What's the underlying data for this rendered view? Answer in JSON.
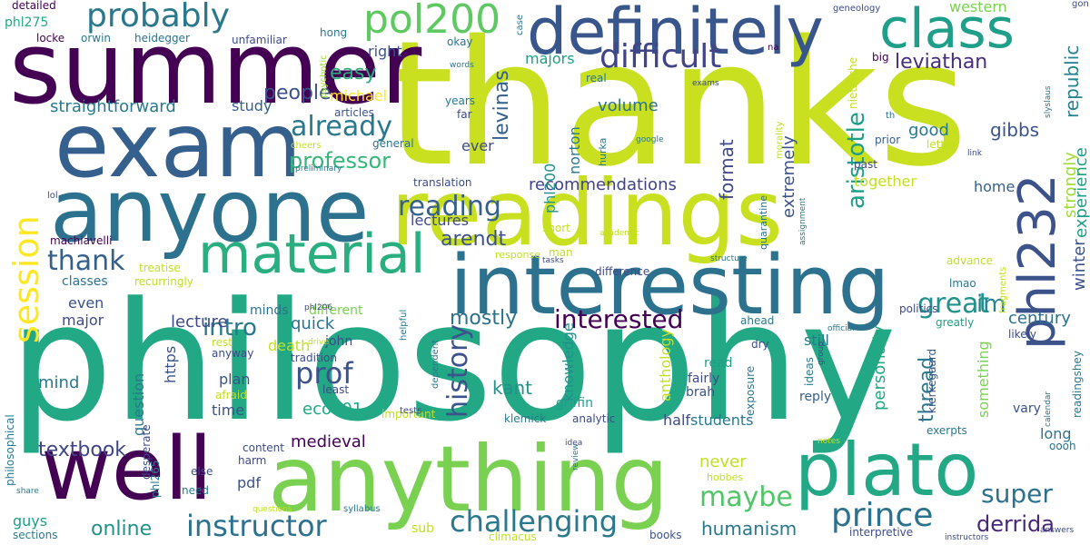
{
  "words": [
    {
      "text": "thanks",
      "color": "#c8e020"
    },
    {
      "text": "philosophy",
      "color": "#22a884"
    },
    {
      "text": "summer",
      "color": "#440154"
    },
    {
      "text": "exam",
      "color": "#355f8d"
    },
    {
      "text": "anyone",
      "color": "#2c728e"
    },
    {
      "text": "readings",
      "color": "#c8e020"
    },
    {
      "text": "definitely",
      "color": "#39568c"
    },
    {
      "text": "anything",
      "color": "#7ad151"
    },
    {
      "text": "well",
      "color": "#440154"
    },
    {
      "text": "interesting",
      "color": "#2c728e"
    },
    {
      "text": "plato",
      "color": "#22a884"
    },
    {
      "text": "class",
      "color": "#1f9e89"
    },
    {
      "text": "material",
      "color": "#29af7f"
    },
    {
      "text": "phl232",
      "color": "#3b528b"
    },
    {
      "text": "session",
      "color": "#fde725"
    },
    {
      "text": "pol200",
      "color": "#5ec962"
    },
    {
      "text": "probably",
      "color": "#2a788e"
    },
    {
      "text": "difficult",
      "color": "#414487"
    },
    {
      "text": "prince",
      "color": "#2c728e"
    },
    {
      "text": "challenging",
      "color": "#2a788e"
    },
    {
      "text": "instructor",
      "color": "#2c728e"
    },
    {
      "text": "interested",
      "color": "#440154"
    },
    {
      "text": "history",
      "color": "#3b528b"
    },
    {
      "text": "leviathan",
      "color": "#472d7b"
    },
    {
      "text": "super",
      "color": "#2c728e"
    },
    {
      "text": "great",
      "color": "#21918c"
    },
    {
      "text": "derrida",
      "color": "#482878"
    },
    {
      "text": "aristotle",
      "color": "#1f9e89"
    },
    {
      "text": "already",
      "color": "#2a788e"
    },
    {
      "text": "thank",
      "color": "#355f8d"
    },
    {
      "text": "prof",
      "color": "#3b528b"
    },
    {
      "text": "maybe",
      "color": "#52c569"
    },
    {
      "text": "reading",
      "color": "#355f8d"
    },
    {
      "text": "professor",
      "color": "#35b779"
    },
    {
      "text": "im",
      "color": "#26828e"
    },
    {
      "text": "intro",
      "color": "#2a788e"
    },
    {
      "text": "people",
      "color": "#3b528b"
    },
    {
      "text": "easy",
      "color": "#29af7f"
    },
    {
      "text": "republic",
      "color": "#26828e"
    },
    {
      "text": "format",
      "color": "#3e4a89"
    },
    {
      "text": "extremely",
      "color": "#3b528b"
    },
    {
      "text": "levinas",
      "color": "#355f8d"
    },
    {
      "text": "arendt",
      "color": "#3b528b"
    },
    {
      "text": "mostly",
      "color": "#2c728e"
    },
    {
      "text": "textbook",
      "color": "#414487"
    },
    {
      "text": "humanism",
      "color": "#2a788e"
    },
    {
      "text": "online",
      "color": "#21918c"
    },
    {
      "text": "gibbs",
      "color": "#3b528b"
    },
    {
      "text": "strongly",
      "color": "#a0da39"
    },
    {
      "text": "experience",
      "color": "#1f9e89"
    },
    {
      "text": "winter",
      "color": "#3b528b"
    },
    {
      "text": "century",
      "color": "#2c728e"
    },
    {
      "text": "thread",
      "color": "#2a788e"
    },
    {
      "text": "personally",
      "color": "#22a884"
    },
    {
      "text": "something",
      "color": "#7ad151"
    },
    {
      "text": "recommendations",
      "color": "#414487"
    },
    {
      "text": "straightforward",
      "color": "#2a788e"
    },
    {
      "text": "western",
      "color": "#7ad151"
    },
    {
      "text": "lecture",
      "color": "#3e4a89"
    },
    {
      "text": "quick",
      "color": "#2c728e"
    },
    {
      "text": "lectures",
      "color": "#3e4a89"
    },
    {
      "text": "kant",
      "color": "#21918c"
    },
    {
      "text": "eco101",
      "color": "#22a884"
    },
    {
      "text": "medieval",
      "color": "#440154"
    },
    {
      "text": "never",
      "color": "#c2df23"
    },
    {
      "text": "students",
      "color": "#2a788e"
    },
    {
      "text": "good",
      "color": "#2a788e"
    },
    {
      "text": "volume",
      "color": "#2c728e"
    },
    {
      "text": "home",
      "color": "#355f8d"
    },
    {
      "text": "mind",
      "color": "#2a788e"
    },
    {
      "text": "question",
      "color": "#2a788e"
    },
    {
      "text": "death",
      "color": "#c2df23"
    },
    {
      "text": "knowledge",
      "color": "#21918c"
    },
    {
      "text": "anthology",
      "color": "#c2df23"
    },
    {
      "text": "still",
      "color": "#2a788e"
    },
    {
      "text": "majors",
      "color": "#1f9e89"
    },
    {
      "text": "study",
      "color": "#355f8d"
    },
    {
      "text": "right",
      "color": "#3b528b"
    },
    {
      "text": "together",
      "color": "#c2df23"
    },
    {
      "text": "long",
      "color": "#2c728e"
    },
    {
      "text": "https",
      "color": "#3b528b"
    },
    {
      "text": "ever",
      "color": "#3e4a89"
    },
    {
      "text": "norton",
      "color": "#2a788e"
    },
    {
      "text": "phl200",
      "color": "#21918c"
    },
    {
      "text": "michael",
      "color": "#fde725"
    },
    {
      "text": "machiavelli",
      "color": "#440154"
    },
    {
      "text": "treatise",
      "color": "#c2df23"
    },
    {
      "text": "classes",
      "color": "#2c728e"
    },
    {
      "text": "recurringly",
      "color": "#c2df23"
    },
    {
      "text": "minds",
      "color": "#2c728e"
    },
    {
      "text": "different",
      "color": "#7ad151"
    },
    {
      "text": "even",
      "color": "#3b528b"
    },
    {
      "text": "major",
      "color": "#3e4a89"
    },
    {
      "text": "time",
      "color": "#3b528b"
    },
    {
      "text": "plan",
      "color": "#3b528b"
    },
    {
      "text": "half",
      "color": "#3e4a89"
    },
    {
      "text": "griffin",
      "color": "#1f9e89"
    },
    {
      "text": "pdf",
      "color": "#3b528b"
    },
    {
      "text": "sub",
      "color": "#c2df23"
    },
    {
      "text": "guys",
      "color": "#1f9e89"
    },
    {
      "text": "john",
      "color": "#3e4a89"
    },
    {
      "text": "sections",
      "color": "#2a788e"
    },
    {
      "text": "politics",
      "color": "#3e4a89"
    },
    {
      "text": "ahead",
      "color": "#2a788e"
    },
    {
      "text": "greatly",
      "color": "#1f9e89"
    },
    {
      "text": "likely",
      "color": "#3e4a89"
    },
    {
      "text": "vary",
      "color": "#3b528b"
    },
    {
      "text": "oooh",
      "color": "#2c728e"
    },
    {
      "text": "reply",
      "color": "#355f8d"
    },
    {
      "text": "brah",
      "color": "#3b528b"
    },
    {
      "text": "fairly",
      "color": "#3e4a89"
    },
    {
      "text": "read",
      "color": "#1f9e89"
    },
    {
      "text": "exposure",
      "color": "#2a788e"
    },
    {
      "text": "kierkegaard",
      "color": "#3b528b"
    },
    {
      "text": "exerpts",
      "color": "#2a788e"
    },
    {
      "text": "dry",
      "color": "#3e4a89"
    },
    {
      "text": "advance",
      "color": "#c2df23"
    },
    {
      "text": "lmao",
      "color": "#2a788e"
    },
    {
      "text": "past",
      "color": "#3e4a89"
    },
    {
      "text": "prior",
      "color": "#355f8d"
    },
    {
      "text": "letter",
      "color": "#c2df23"
    },
    {
      "text": "big",
      "color": "#440154"
    },
    {
      "text": "geneology",
      "color": "#3e4a89"
    },
    {
      "text": "nietzsche",
      "color": "#c2df23"
    },
    {
      "text": "locke",
      "color": "#440154"
    },
    {
      "text": "phl275",
      "color": "#22a884"
    },
    {
      "text": "detailed",
      "color": "#440154"
    },
    {
      "text": "orwin",
      "color": "#2a788e"
    },
    {
      "text": "heidegger",
      "color": "#2c728e"
    },
    {
      "text": "unfamiliar",
      "color": "#3e4a89"
    },
    {
      "text": "hong",
      "color": "#2a788e"
    },
    {
      "text": "psychotic",
      "color": "#a0da39"
    },
    {
      "text": "okay",
      "color": "#2a788e"
    },
    {
      "text": "case",
      "color": "#2c728e"
    },
    {
      "text": "gon",
      "color": "#3e4a89"
    },
    {
      "text": "na",
      "color": "#440154"
    },
    {
      "text": "articles",
      "color": "#3b528b"
    },
    {
      "text": "years",
      "color": "#2a788e"
    },
    {
      "text": "far",
      "color": "#3e4a89"
    },
    {
      "text": "general",
      "color": "#2c728e"
    },
    {
      "text": "cheers",
      "color": "#c2df23"
    },
    {
      "text": "preliminary",
      "color": "#2a788e"
    },
    {
      "text": "lol",
      "color": "#3e4a89"
    },
    {
      "text": "translation",
      "color": "#3e4a89"
    },
    {
      "text": "real",
      "color": "#2a788e"
    },
    {
      "text": "words",
      "color": "#2a788e"
    },
    {
      "text": "exams",
      "color": "#3e4a89"
    },
    {
      "text": "google",
      "color": "#2a788e"
    },
    {
      "text": "link",
      "color": "#3e4a89"
    },
    {
      "text": "th",
      "color": "#2c728e"
    },
    {
      "text": "morality",
      "color": "#c2df23"
    },
    {
      "text": "hurka",
      "color": "#2a788e"
    },
    {
      "text": "quarantine",
      "color": "#2c728e"
    },
    {
      "text": "assignment",
      "color": "#2a788e"
    },
    {
      "text": "academic",
      "color": "#c2df23"
    },
    {
      "text": "short",
      "color": "#c2df23"
    },
    {
      "text": "man",
      "color": "#c2df23"
    },
    {
      "text": "response",
      "color": "#c2df23"
    },
    {
      "text": "tasks",
      "color": "#3e4a89"
    },
    {
      "text": "difference",
      "color": "#3e4a89"
    },
    {
      "text": "structure",
      "color": "#2a788e"
    },
    {
      "text": "official",
      "color": "#2a788e"
    },
    {
      "text": "group",
      "color": "#3e4a89"
    },
    {
      "text": "ideas",
      "color": "#2a788e"
    },
    {
      "text": "fragments",
      "color": "#c2df23"
    },
    {
      "text": "readingshey",
      "color": "#2a788e"
    },
    {
      "text": "calendar",
      "color": "#2c728e"
    },
    {
      "text": "notes",
      "color": "#c2df23"
    },
    {
      "text": "answers",
      "color": "#3e4a89"
    },
    {
      "text": "instructors",
      "color": "#3e4a89"
    },
    {
      "text": "interpretive",
      "color": "#3e4a89"
    },
    {
      "text": "books",
      "color": "#3b528b"
    },
    {
      "text": "climacus",
      "color": "#c2df23"
    },
    {
      "text": "hobbes",
      "color": "#c2df23"
    },
    {
      "text": "review",
      "color": "#2a788e"
    },
    {
      "text": "idea",
      "color": "#3e4a89"
    },
    {
      "text": "analytic",
      "color": "#3e4a89"
    },
    {
      "text": "klemick",
      "color": "#2a788e"
    },
    {
      "text": "syllabus",
      "color": "#2a788e"
    },
    {
      "text": "questions",
      "color": "#c2df23"
    },
    {
      "text": "need",
      "color": "#2a788e"
    },
    {
      "text": "harm",
      "color": "#3e4a89"
    },
    {
      "text": "else",
      "color": "#3e4a89"
    },
    {
      "text": "content",
      "color": "#3e4a89"
    },
    {
      "text": "important",
      "color": "#c2df23"
    },
    {
      "text": "tests",
      "color": "#3e4a89"
    },
    {
      "text": "dependent",
      "color": "#2a788e"
    },
    {
      "text": "helpful",
      "color": "#2a788e"
    },
    {
      "text": "phl206",
      "color": "#3e4a89"
    },
    {
      "text": "drive",
      "color": "#c2df23"
    },
    {
      "text": "tradition",
      "color": "#3e4a89"
    },
    {
      "text": "least",
      "color": "#3e4a89"
    },
    {
      "text": "rest",
      "color": "#c2df23"
    },
    {
      "text": "anyway",
      "color": "#3e4a89"
    },
    {
      "text": "afraid",
      "color": "#c2df23"
    },
    {
      "text": "desperate",
      "color": "#3e4a89"
    },
    {
      "text": "phl265",
      "color": "#2a788e"
    },
    {
      "text": "share",
      "color": "#2a788e"
    },
    {
      "text": "philosophical",
      "color": "#2a788e"
    },
    {
      "text": "slyslaus",
      "color": "#2a788e"
    }
  ]
}
